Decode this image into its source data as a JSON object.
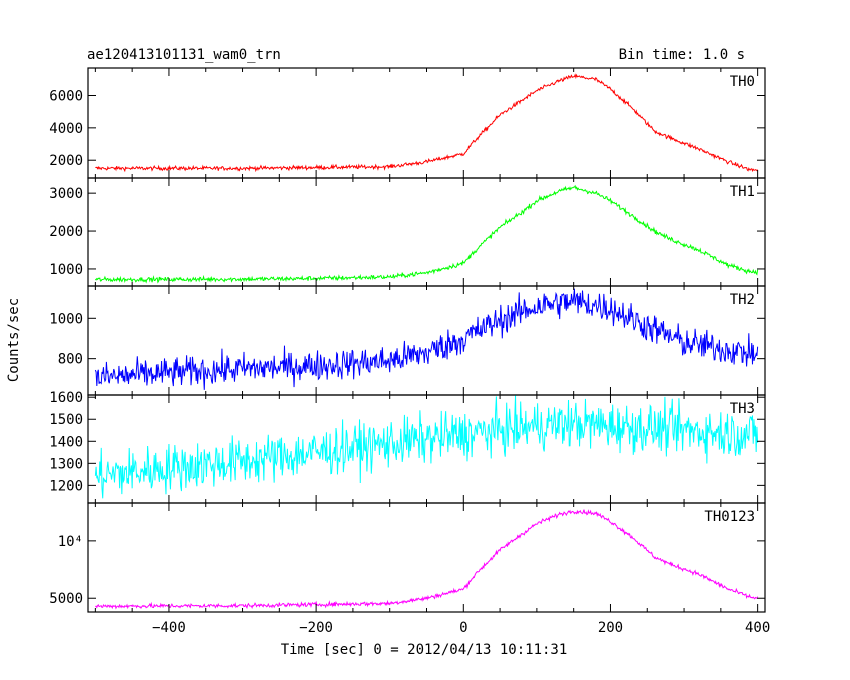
{
  "chart_data": {
    "type": "line",
    "title": "ae120413101131_wam0_trn",
    "bin_time": "Bin time: 1.0 s",
    "xlabel": "Time [sec] 0 = 2012/04/13 10:11:31",
    "ylabel": "Counts/sec",
    "xlim": [
      -510,
      410
    ],
    "x_ticks": [
      -400,
      -200,
      0,
      200,
      400
    ],
    "x_tick_labels": [
      "−400",
      "−200",
      "0",
      "200",
      "400"
    ],
    "panels": [
      {
        "name": "TH0",
        "color": "#ff0000",
        "ylim": [
          900,
          7700
        ],
        "y_ticks": [
          2000,
          4000,
          6000
        ],
        "y_tick_labels": [
          "2000",
          "4000",
          "6000"
        ],
        "noise": 60,
        "x": [
          -500,
          -300,
          -200,
          -100,
          -50,
          0,
          20,
          50,
          80,
          100,
          130,
          150,
          180,
          200,
          230,
          260,
          280,
          320,
          360,
          390,
          400
        ],
        "y": [
          1500,
          1500,
          1550,
          1600,
          1900,
          2400,
          3400,
          4800,
          5700,
          6300,
          6900,
          7200,
          7000,
          6400,
          5200,
          3800,
          3400,
          2700,
          1900,
          1400,
          1400
        ]
      },
      {
        "name": "TH1",
        "color": "#00ff00",
        "ylim": [
          550,
          3400
        ],
        "y_ticks": [
          1000,
          2000,
          3000
        ],
        "y_tick_labels": [
          "1000",
          "2000",
          "3000"
        ],
        "noise": 30,
        "x": [
          -500,
          -300,
          -200,
          -100,
          -50,
          0,
          20,
          50,
          80,
          100,
          130,
          150,
          180,
          200,
          230,
          260,
          280,
          320,
          360,
          390,
          400
        ],
        "y": [
          720,
          730,
          750,
          790,
          900,
          1150,
          1550,
          2100,
          2500,
          2800,
          3050,
          3150,
          3000,
          2800,
          2400,
          2000,
          1800,
          1500,
          1100,
          930,
          930
        ]
      },
      {
        "name": "TH2",
        "color": "#0000ff",
        "ylim": [
          620,
          1160
        ],
        "y_ticks": [
          800,
          1000
        ],
        "y_tick_labels": [
          "800",
          "1000"
        ],
        "noise": 38,
        "x": [
          -500,
          -400,
          -300,
          -200,
          -100,
          -50,
          0,
          50,
          100,
          150,
          200,
          250,
          300,
          350,
          400
        ],
        "y": [
          705,
          730,
          750,
          765,
          790,
          830,
          900,
          990,
          1060,
          1085,
          1050,
          960,
          880,
          850,
          820
        ]
      },
      {
        "name": "TH3",
        "color": "#00ffff",
        "ylim": [
          1120,
          1610
        ],
        "y_ticks": [
          1200,
          1300,
          1400,
          1500,
          1600
        ],
        "y_tick_labels": [
          "1200",
          "1300",
          "1400",
          "1500",
          "1600"
        ],
        "noise": 55,
        "x": [
          -500,
          -400,
          -300,
          -200,
          -100,
          0,
          50,
          100,
          150,
          200,
          250,
          300,
          350,
          400
        ],
        "y": [
          1240,
          1280,
          1310,
          1350,
          1390,
          1430,
          1450,
          1470,
          1480,
          1470,
          1460,
          1450,
          1440,
          1430
        ]
      },
      {
        "name": "TH0123",
        "color": "#ff00ff",
        "ylim": [
          3800,
          13300
        ],
        "y_ticks": [
          5000,
          10000
        ],
        "y_tick_labels": [
          "5000",
          "10⁴"
        ],
        "noise": 90,
        "x": [
          -500,
          -300,
          -200,
          -100,
          -50,
          0,
          20,
          50,
          80,
          100,
          130,
          150,
          180,
          200,
          230,
          260,
          280,
          320,
          360,
          390,
          400
        ],
        "y": [
          4300,
          4350,
          4450,
          4550,
          5000,
          5800,
          7300,
          9200,
          10600,
          11500,
          12300,
          12600,
          12400,
          11700,
          10300,
          8600,
          8000,
          7100,
          5800,
          5100,
          5000
        ]
      }
    ]
  }
}
